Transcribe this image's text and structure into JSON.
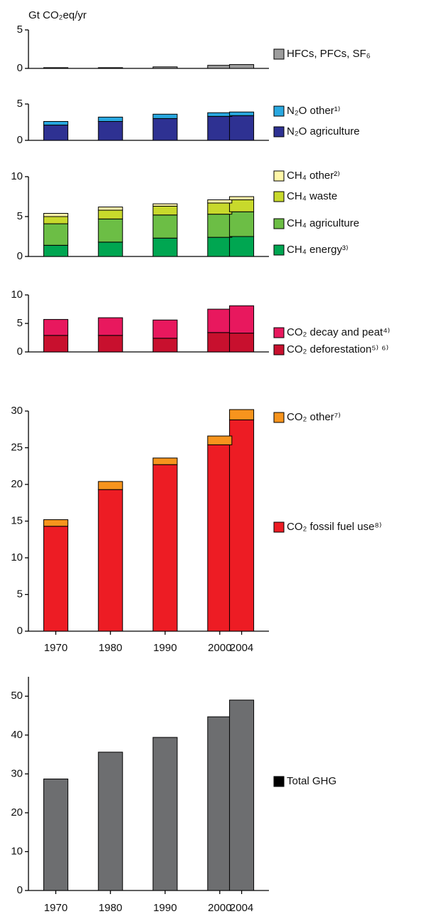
{
  "chart_data": [
    {
      "type": "bar",
      "ylabel": "Gt CO₂eq/yr",
      "x": [
        1970,
        1980,
        1990,
        2000,
        2004
      ],
      "xlim": [
        1965,
        2009
      ],
      "ylim": [
        0,
        5
      ],
      "yticks": [
        0,
        5
      ],
      "series": [
        {
          "name": "HFCs, PFCs, SF₆",
          "color": "#9d9d9d",
          "values": [
            0.1,
            0.1,
            0.2,
            0.4,
            0.5
          ]
        }
      ]
    },
    {
      "type": "stacked_bar",
      "x": [
        1970,
        1980,
        1990,
        2000,
        2004
      ],
      "xlim": [
        1965,
        2009
      ],
      "ylim": [
        0,
        5
      ],
      "yticks": [
        0,
        5
      ],
      "series": [
        {
          "name": "N₂O agriculture",
          "color": "#2e3192",
          "values": [
            2.1,
            2.6,
            3.0,
            3.3,
            3.4
          ]
        },
        {
          "name": "N₂O other¹⁾",
          "color": "#29a8e0",
          "values": [
            0.5,
            0.6,
            0.6,
            0.5,
            0.5
          ]
        }
      ]
    },
    {
      "type": "stacked_bar",
      "x": [
        1970,
        1980,
        1990,
        2000,
        2004
      ],
      "xlim": [
        1965,
        2009
      ],
      "ylim": [
        0,
        10
      ],
      "yticks": [
        0,
        5,
        10
      ],
      "series": [
        {
          "name": "CH₄ energy³⁾",
          "color": "#00a651",
          "values": [
            1.4,
            1.8,
            2.3,
            2.4,
            2.5
          ]
        },
        {
          "name": "CH₄ agriculture",
          "color": "#6cbe45",
          "values": [
            2.7,
            2.9,
            2.9,
            2.9,
            3.1
          ]
        },
        {
          "name": "CH₄ waste",
          "color": "#c8d92c",
          "values": [
            0.9,
            1.1,
            1.1,
            1.4,
            1.5
          ]
        },
        {
          "name": "CH₄ other²⁾",
          "color": "#fff6a8",
          "values": [
            0.4,
            0.4,
            0.3,
            0.4,
            0.4
          ]
        }
      ]
    },
    {
      "type": "stacked_bar",
      "x": [
        1970,
        1980,
        1990,
        2000,
        2004
      ],
      "xlim": [
        1965,
        2009
      ],
      "ylim": [
        0,
        10
      ],
      "yticks": [
        0,
        5,
        10
      ],
      "series": [
        {
          "name": "CO₂ deforestation⁵⁾ ⁶⁾",
          "color": "#c8102e",
          "values": [
            2.9,
            2.9,
            2.4,
            3.4,
            3.3
          ]
        },
        {
          "name": "CO₂ decay and peat⁴⁾",
          "color": "#e8185e",
          "values": [
            2.8,
            3.1,
            3.2,
            4.1,
            4.8
          ]
        }
      ]
    },
    {
      "type": "stacked_bar",
      "x": [
        1970,
        1980,
        1990,
        2000,
        2004
      ],
      "xlim": [
        1965,
        2009
      ],
      "xticks": [
        1970,
        1980,
        1990,
        2000,
        2004
      ],
      "ylim": [
        0,
        30
      ],
      "yticks": [
        0,
        5,
        10,
        15,
        20,
        25,
        30
      ],
      "series": [
        {
          "name": "CO₂ fossil fuel use⁸⁾",
          "color": "#ed1c24",
          "values": [
            14.3,
            19.3,
            22.7,
            25.4,
            28.8
          ]
        },
        {
          "name": "CO₂ other⁷⁾",
          "color": "#f7941d",
          "values": [
            0.9,
            1.1,
            0.9,
            1.2,
            1.4
          ]
        }
      ]
    },
    {
      "type": "bar",
      "x": [
        1970,
        1980,
        1990,
        2000,
        2004
      ],
      "xlim": [
        1965,
        2009
      ],
      "xticks": [
        1970,
        1980,
        1990,
        2000,
        2004
      ],
      "ylim": [
        0,
        55
      ],
      "yticks": [
        0,
        10,
        20,
        30,
        40,
        50
      ],
      "series": [
        {
          "name": "Total GHG",
          "color": "#6d6e70",
          "legend_color": "#000000",
          "values": [
            28.7,
            35.6,
            39.4,
            44.7,
            49.0
          ]
        }
      ]
    }
  ]
}
